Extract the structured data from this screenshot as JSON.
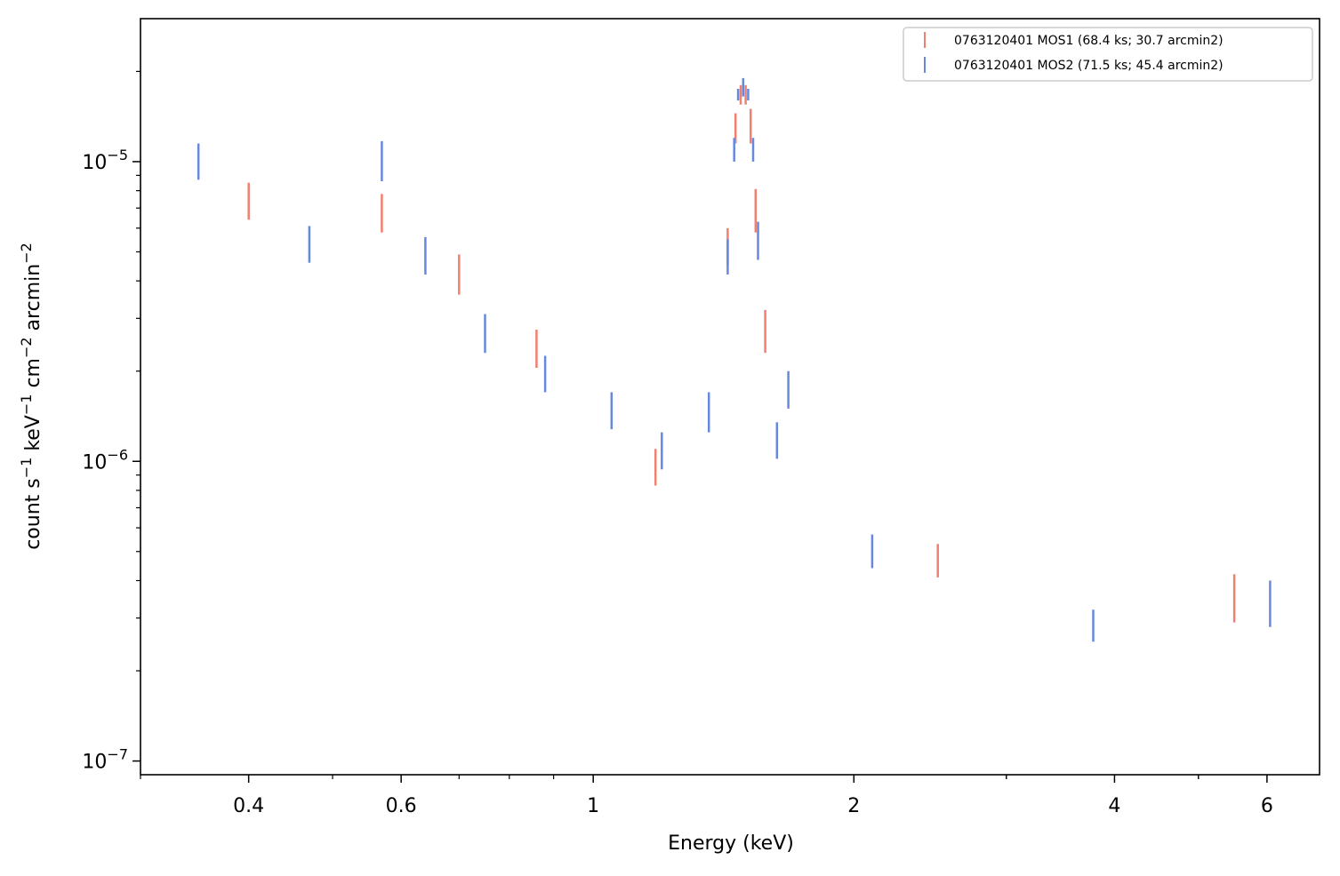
{
  "chart_data": {
    "type": "scatter",
    "xlabel": "Energy (keV)",
    "ylabel_parts": [
      "count s",
      "−1",
      " keV",
      "−1",
      " cm",
      "−2",
      " arcmin",
      "−2"
    ],
    "x_scale": "log",
    "y_scale": "log",
    "xlim": [
      0.3,
      6.9
    ],
    "ylim": [
      9e-08,
      3e-05
    ],
    "x_ticks": [
      {
        "value": 0.4,
        "label": "0.4"
      },
      {
        "value": 0.6,
        "label": "0.6"
      },
      {
        "value": 1,
        "label": "1"
      },
      {
        "value": 2,
        "label": "2"
      },
      {
        "value": 4,
        "label": "4"
      },
      {
        "value": 6,
        "label": "6"
      }
    ],
    "y_ticks": [
      {
        "value": 1e-07,
        "base": "10",
        "exp": "−7"
      },
      {
        "value": 1e-06,
        "base": "10",
        "exp": "−6"
      },
      {
        "value": 1e-05,
        "base": "10",
        "exp": "−5"
      }
    ],
    "grid": false,
    "legend_position": "top-right",
    "series": [
      {
        "name": "0763120401 MOS1 (68.4 ks; 30.7 arcmin2)",
        "color": "#f08070",
        "points": [
          {
            "x": 0.4,
            "ylo": 6.4e-06,
            "yhi": 8.5e-06
          },
          {
            "x": 0.57,
            "ylo": 5.8e-06,
            "yhi": 7.8e-06
          },
          {
            "x": 0.7,
            "ylo": 3.6e-06,
            "yhi": 4.9e-06
          },
          {
            "x": 0.86,
            "ylo": 2.05e-06,
            "yhi": 2.75e-06
          },
          {
            "x": 1.18,
            "ylo": 8.3e-07,
            "yhi": 1.1e-06
          },
          {
            "x": 1.43,
            "ylo": 4.5e-06,
            "yhi": 6e-06
          },
          {
            "x": 1.46,
            "ylo": 1.15e-05,
            "yhi": 1.45e-05
          },
          {
            "x": 1.48,
            "ylo": 1.55e-05,
            "yhi": 1.8e-05
          },
          {
            "x": 1.5,
            "ylo": 1.55e-05,
            "yhi": 1.8e-05
          },
          {
            "x": 1.52,
            "ylo": 1.15e-05,
            "yhi": 1.5e-05
          },
          {
            "x": 1.54,
            "ylo": 5.8e-06,
            "yhi": 8.1e-06
          },
          {
            "x": 1.58,
            "ylo": 2.3e-06,
            "yhi": 3.2e-06
          },
          {
            "x": 2.5,
            "ylo": 4.1e-07,
            "yhi": 5.3e-07
          },
          {
            "x": 5.5,
            "ylo": 2.9e-07,
            "yhi": 4.2e-07
          }
        ]
      },
      {
        "name": "0763120401 MOS2 (71.5 ks; 45.4 arcmin2)",
        "color": "#6688dd",
        "points": [
          {
            "x": 0.35,
            "ylo": 8.7e-06,
            "yhi": 1.15e-05
          },
          {
            "x": 0.47,
            "ylo": 4.6e-06,
            "yhi": 6.1e-06
          },
          {
            "x": 0.57,
            "ylo": 8.6e-06,
            "yhi": 1.17e-05
          },
          {
            "x": 0.64,
            "ylo": 4.2e-06,
            "yhi": 5.6e-06
          },
          {
            "x": 0.75,
            "ylo": 2.3e-06,
            "yhi": 3.1e-06
          },
          {
            "x": 0.88,
            "ylo": 1.7e-06,
            "yhi": 2.25e-06
          },
          {
            "x": 1.05,
            "ylo": 1.28e-06,
            "yhi": 1.7e-06
          },
          {
            "x": 1.2,
            "ylo": 9.4e-07,
            "yhi": 1.25e-06
          },
          {
            "x": 1.36,
            "ylo": 1.25e-06,
            "yhi": 1.7e-06
          },
          {
            "x": 1.43,
            "ylo": 4.2e-06,
            "yhi": 5.5e-06
          },
          {
            "x": 1.455,
            "ylo": 1e-05,
            "yhi": 1.2e-05
          },
          {
            "x": 1.47,
            "ylo": 1.6e-05,
            "yhi": 1.75e-05
          },
          {
            "x": 1.49,
            "ylo": 1.65e-05,
            "yhi": 1.9e-05
          },
          {
            "x": 1.51,
            "ylo": 1.6e-05,
            "yhi": 1.75e-05
          },
          {
            "x": 1.53,
            "ylo": 1e-05,
            "yhi": 1.2e-05
          },
          {
            "x": 1.55,
            "ylo": 4.7e-06,
            "yhi": 6.3e-06
          },
          {
            "x": 1.63,
            "ylo": 1.02e-06,
            "yhi": 1.35e-06
          },
          {
            "x": 1.68,
            "ylo": 1.5e-06,
            "yhi": 2e-06
          },
          {
            "x": 2.1,
            "ylo": 4.4e-07,
            "yhi": 5.7e-07
          },
          {
            "x": 3.78,
            "ylo": 2.5e-07,
            "yhi": 3.2e-07
          },
          {
            "x": 6.05,
            "ylo": 2.8e-07,
            "yhi": 4e-07
          }
        ]
      }
    ]
  }
}
